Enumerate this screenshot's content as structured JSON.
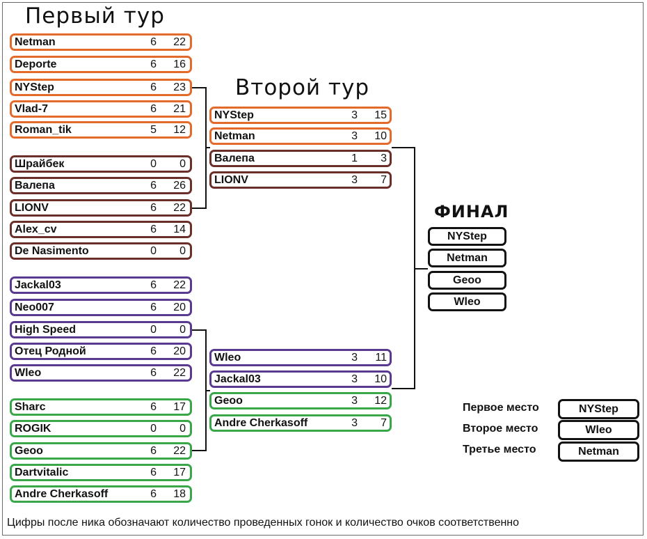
{
  "titles": {
    "round1": "Первый тур",
    "round2": "Второй тур",
    "final": "ФИНАЛ"
  },
  "round1": [
    {
      "name": "Netman",
      "races": "6",
      "points": "22"
    },
    {
      "name": "Deporte",
      "races": "6",
      "points": "16"
    },
    {
      "name": "NYStep",
      "races": "6",
      "points": "23"
    },
    {
      "name": "Vlad-7",
      "races": "6",
      "points": "21"
    },
    {
      "name": "Roman_tik",
      "races": "5",
      "points": "12"
    },
    {
      "name": "Шрайбек",
      "races": "0",
      "points": "0"
    },
    {
      "name": "Валепа",
      "races": "6",
      "points": "26"
    },
    {
      "name": "LIONV",
      "races": "6",
      "points": "22"
    },
    {
      "name": "Alex_cv",
      "races": "6",
      "points": "14"
    },
    {
      "name": "De Nasimento",
      "races": "0",
      "points": "0"
    },
    {
      "name": "Jackal03",
      "races": "6",
      "points": "22"
    },
    {
      "name": "Neo007",
      "races": "6",
      "points": "20"
    },
    {
      "name": "High Speed",
      "races": "0",
      "points": "0"
    },
    {
      "name": "Отец Родной",
      "races": "6",
      "points": "20"
    },
    {
      "name": "Wleo",
      "races": "6",
      "points": "22"
    },
    {
      "name": "Sharc",
      "races": "6",
      "points": "17"
    },
    {
      "name": "ROGIK",
      "races": "0",
      "points": "0"
    },
    {
      "name": "Geoo",
      "races": "6",
      "points": "22"
    },
    {
      "name": "Dartvitalic",
      "races": "6",
      "points": "17"
    },
    {
      "name": "Andre Cherkasoff",
      "races": "6",
      "points": "18"
    }
  ],
  "round2": [
    {
      "name": "NYStep",
      "races": "3",
      "points": "15"
    },
    {
      "name": "Netman",
      "races": "3",
      "points": "10"
    },
    {
      "name": "Валепа",
      "races": "1",
      "points": "3"
    },
    {
      "name": "LIONV",
      "races": "3",
      "points": "7"
    },
    {
      "name": "Wleo",
      "races": "3",
      "points": "11"
    },
    {
      "name": "Jackal03",
      "races": "3",
      "points": "10"
    },
    {
      "name": "Geoo",
      "races": "3",
      "points": "12"
    },
    {
      "name": "Andre Cherkasoff",
      "races": "3",
      "points": "7"
    }
  ],
  "final": [
    "NYStep",
    "Netman",
    "Geoo",
    "Wleo"
  ],
  "places": [
    {
      "label": "Первое место",
      "name": "NYStep"
    },
    {
      "label": "Второе место",
      "name": "Wleo"
    },
    {
      "label": "Третье место",
      "name": "Netman"
    }
  ],
  "footer": "Цифры после ника обозначают количество проведенных гонок и количество очков соответственно"
}
